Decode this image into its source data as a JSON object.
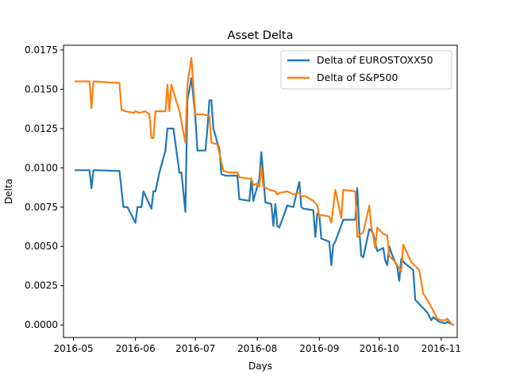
{
  "chart_data": {
    "type": "line",
    "title": "Asset Delta",
    "xlabel": "Days",
    "ylabel": "Delta",
    "x_ticks": [
      "2016-05",
      "2016-06",
      "2016-07",
      "2016-08",
      "2016-09",
      "2016-10",
      "2016-11"
    ],
    "y_ticks": [
      "0.0000",
      "0.0025",
      "0.0050",
      "0.0075",
      "0.0100",
      "0.0125",
      "0.0150",
      "0.0175"
    ],
    "ylim": [
      -0.0008,
      0.0178
    ],
    "xlim": [
      "2016-04-26",
      "2016-11-09"
    ],
    "grid": false,
    "legend_position": "top-right",
    "colors": {
      "series_1": "#1f77b4",
      "series_2": "#ff7f0e"
    },
    "series": [
      {
        "name": "Delta of EUROSTOXX50",
        "points": [
          [
            "2016-05-02",
            0.00985
          ],
          [
            "2016-05-09",
            0.00985
          ],
          [
            "2016-05-10",
            0.0087
          ],
          [
            "2016-05-11",
            0.00985
          ],
          [
            "2016-05-24",
            0.0098
          ],
          [
            "2016-05-26",
            0.0075
          ],
          [
            "2016-05-28",
            0.0075
          ],
          [
            "2016-06-01",
            0.0065
          ],
          [
            "2016-06-02",
            0.0075
          ],
          [
            "2016-06-04",
            0.0075
          ],
          [
            "2016-06-05",
            0.0085
          ],
          [
            "2016-06-09",
            0.0074
          ],
          [
            "2016-06-10",
            0.0085
          ],
          [
            "2016-06-11",
            0.0085
          ],
          [
            "2016-06-13",
            0.0097
          ],
          [
            "2016-06-16",
            0.0111
          ],
          [
            "2016-06-17",
            0.0125
          ],
          [
            "2016-06-20",
            0.0125
          ],
          [
            "2016-06-23",
            0.0097
          ],
          [
            "2016-06-24",
            0.0097
          ],
          [
            "2016-06-26",
            0.0072
          ],
          [
            "2016-06-27",
            0.0143
          ],
          [
            "2016-06-29",
            0.0157
          ],
          [
            "2016-07-01",
            0.0132
          ],
          [
            "2016-07-02",
            0.0111
          ],
          [
            "2016-07-05",
            0.0111
          ],
          [
            "2016-07-06",
            0.0111
          ],
          [
            "2016-07-07",
            0.0125
          ],
          [
            "2016-07-08",
            0.0143
          ],
          [
            "2016-07-09",
            0.0143
          ],
          [
            "2016-07-10",
            0.0125
          ],
          [
            "2016-07-12",
            0.0116
          ],
          [
            "2016-07-13",
            0.0112
          ],
          [
            "2016-07-14",
            0.0096
          ],
          [
            "2016-07-16",
            0.0095
          ],
          [
            "2016-07-22",
            0.0095
          ],
          [
            "2016-07-23",
            0.008
          ],
          [
            "2016-07-28",
            0.0079
          ],
          [
            "2016-07-29",
            0.0093
          ],
          [
            "2016-07-30",
            0.0079
          ],
          [
            "2016-08-02",
            0.0093
          ],
          [
            "2016-08-03",
            0.011
          ],
          [
            "2016-08-04",
            0.0095
          ],
          [
            "2016-08-05",
            0.0078
          ],
          [
            "2016-08-08",
            0.0077
          ],
          [
            "2016-08-09",
            0.0063
          ],
          [
            "2016-08-10",
            0.0077
          ],
          [
            "2016-08-11",
            0.0063
          ],
          [
            "2016-08-12",
            0.0062
          ],
          [
            "2016-08-16",
            0.0076
          ],
          [
            "2016-08-19",
            0.0075
          ],
          [
            "2016-08-22",
            0.0091
          ],
          [
            "2016-08-23",
            0.0075
          ],
          [
            "2016-08-24",
            0.0074
          ],
          [
            "2016-08-29",
            0.0073
          ],
          [
            "2016-08-30",
            0.0056
          ],
          [
            "2016-08-31",
            0.0071
          ],
          [
            "2016-09-01",
            0.007
          ],
          [
            "2016-09-02",
            0.0055
          ],
          [
            "2016-09-06",
            0.0053
          ],
          [
            "2016-09-07",
            0.0038
          ],
          [
            "2016-09-08",
            0.0051
          ],
          [
            "2016-09-09",
            0.0053
          ],
          [
            "2016-09-13",
            0.0067
          ],
          [
            "2016-09-19",
            0.0067
          ],
          [
            "2016-09-20",
            0.0087
          ],
          [
            "2016-09-21",
            0.006
          ],
          [
            "2016-09-22",
            0.0044
          ],
          [
            "2016-09-23",
            0.0043
          ],
          [
            "2016-09-26",
            0.0061
          ],
          [
            "2016-09-27",
            0.006
          ],
          [
            "2016-09-28",
            0.0058
          ],
          [
            "2016-09-30",
            0.0047
          ],
          [
            "2016-10-03",
            0.0049
          ],
          [
            "2016-10-04",
            0.0041
          ],
          [
            "2016-10-05",
            0.0038
          ],
          [
            "2016-10-06",
            0.005
          ],
          [
            "2016-10-07",
            0.0046
          ],
          [
            "2016-10-10",
            0.0037
          ],
          [
            "2016-10-11",
            0.0028
          ],
          [
            "2016-10-12",
            0.0042
          ],
          [
            "2016-10-14",
            0.0039
          ],
          [
            "2016-10-18",
            0.0035
          ],
          [
            "2016-10-19",
            0.0016
          ],
          [
            "2016-10-25",
            0.0008
          ],
          [
            "2016-10-27",
            0.0003
          ],
          [
            "2016-10-28",
            0.0005
          ],
          [
            "2016-10-31",
            0.0002
          ],
          [
            "2016-11-03",
            0.0001
          ],
          [
            "2016-11-04",
            0.0002
          ],
          [
            "2016-11-07",
            0.0
          ]
        ]
      },
      {
        "name": "Delta of S&P500",
        "points": [
          [
            "2016-05-02",
            0.0155
          ],
          [
            "2016-05-09",
            0.0155
          ],
          [
            "2016-05-10",
            0.0138
          ],
          [
            "2016-05-11",
            0.0155
          ],
          [
            "2016-05-24",
            0.0154
          ],
          [
            "2016-05-25",
            0.0137
          ],
          [
            "2016-05-27",
            0.0136
          ],
          [
            "2016-05-31",
            0.0135
          ],
          [
            "2016-06-01",
            0.0136
          ],
          [
            "2016-06-03",
            0.0135
          ],
          [
            "2016-06-06",
            0.0136
          ],
          [
            "2016-06-08",
            0.0134
          ],
          [
            "2016-06-09",
            0.0119
          ],
          [
            "2016-06-10",
            0.0119
          ],
          [
            "2016-06-11",
            0.0136
          ],
          [
            "2016-06-16",
            0.0136
          ],
          [
            "2016-06-17",
            0.0153
          ],
          [
            "2016-06-18",
            0.0136
          ],
          [
            "2016-06-19",
            0.0153
          ],
          [
            "2016-06-23",
            0.0136
          ],
          [
            "2016-06-26",
            0.0116
          ],
          [
            "2016-06-27",
            0.0153
          ],
          [
            "2016-06-29",
            0.017
          ],
          [
            "2016-07-01",
            0.0134
          ],
          [
            "2016-07-05",
            0.0134
          ],
          [
            "2016-07-08",
            0.0133
          ],
          [
            "2016-07-09",
            0.0116
          ],
          [
            "2016-07-12",
            0.0115
          ],
          [
            "2016-07-15",
            0.0098
          ],
          [
            "2016-07-18",
            0.0097
          ],
          [
            "2016-07-22",
            0.0097
          ],
          [
            "2016-07-23",
            0.0094
          ],
          [
            "2016-07-29",
            0.0093
          ],
          [
            "2016-07-30",
            0.0089
          ],
          [
            "2016-08-01",
            0.009
          ],
          [
            "2016-08-02",
            0.0088
          ],
          [
            "2016-08-03",
            0.0101
          ],
          [
            "2016-08-04",
            0.0088
          ],
          [
            "2016-08-07",
            0.0086
          ],
          [
            "2016-08-10",
            0.0085
          ],
          [
            "2016-08-11",
            0.0083
          ],
          [
            "2016-08-12",
            0.0084
          ],
          [
            "2016-08-16",
            0.0085
          ],
          [
            "2016-08-19",
            0.0083
          ],
          [
            "2016-08-22",
            0.0084
          ],
          [
            "2016-08-23",
            0.0082
          ],
          [
            "2016-08-25",
            0.0082
          ],
          [
            "2016-08-29",
            0.0079
          ],
          [
            "2016-08-31",
            0.0076
          ],
          [
            "2016-09-01",
            0.0069
          ],
          [
            "2016-09-02",
            0.007
          ],
          [
            "2016-09-06",
            0.0069
          ],
          [
            "2016-09-07",
            0.0065
          ],
          [
            "2016-09-09",
            0.0086
          ],
          [
            "2016-09-11",
            0.0074
          ],
          [
            "2016-09-12",
            0.0068
          ],
          [
            "2016-09-13",
            0.0086
          ],
          [
            "2016-09-19",
            0.0085
          ],
          [
            "2016-09-20",
            0.0056
          ],
          [
            "2016-09-23",
            0.0059
          ],
          [
            "2016-09-26",
            0.0076
          ],
          [
            "2016-09-27",
            0.0063
          ],
          [
            "2016-09-29",
            0.0049
          ],
          [
            "2016-09-30",
            0.0062
          ],
          [
            "2016-10-03",
            0.0058
          ],
          [
            "2016-10-05",
            0.0057
          ],
          [
            "2016-10-06",
            0.0044
          ],
          [
            "2016-10-09",
            0.004
          ],
          [
            "2016-10-12",
            0.0034
          ],
          [
            "2016-10-13",
            0.0051
          ],
          [
            "2016-10-17",
            0.004
          ],
          [
            "2016-10-21",
            0.0035
          ],
          [
            "2016-10-23",
            0.002
          ],
          [
            "2016-10-26",
            0.0014
          ],
          [
            "2016-10-30",
            0.0004
          ],
          [
            "2016-11-01",
            0.0003
          ],
          [
            "2016-11-03",
            0.0003
          ],
          [
            "2016-11-04",
            0.0004
          ],
          [
            "2016-11-06",
            0.0001
          ],
          [
            "2016-11-07",
            0.0
          ]
        ]
      }
    ]
  }
}
